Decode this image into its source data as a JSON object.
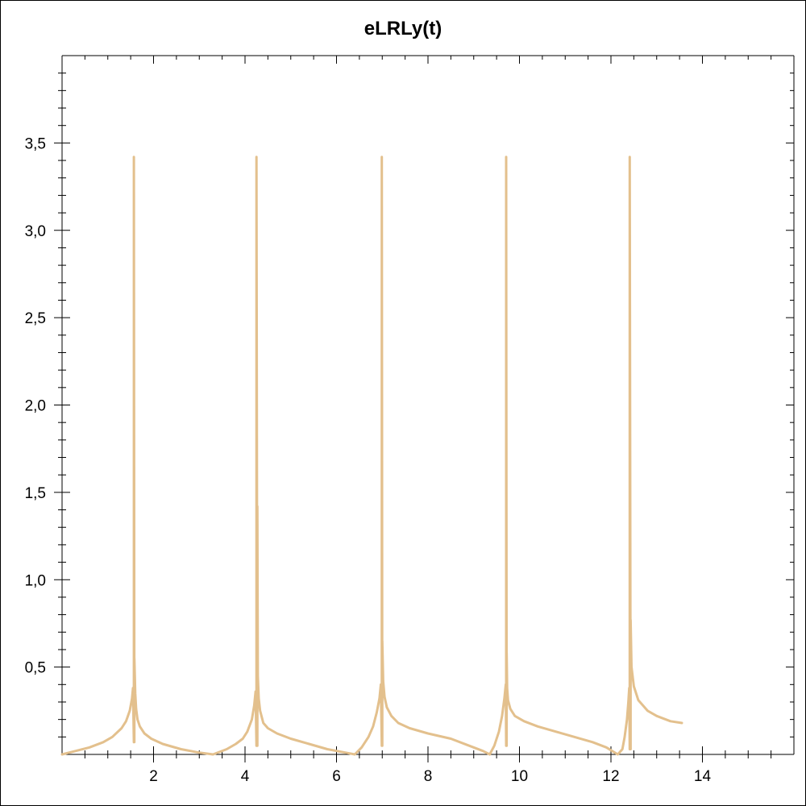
{
  "chart_data": {
    "type": "line",
    "title": "eLRLy(t)",
    "xlabel": "",
    "ylabel": "",
    "xlim": [
      0,
      16
    ],
    "ylim": [
      0,
      4
    ],
    "x_ticks": [
      2,
      4,
      6,
      8,
      10,
      12,
      14
    ],
    "x_tick_labels": [
      "2",
      "4",
      "6",
      "8",
      "10",
      "12",
      "14"
    ],
    "y_ticks": [
      0.5,
      1.0,
      1.5,
      2.0,
      2.5,
      3.0,
      3.5
    ],
    "y_tick_labels": [
      "0,5",
      "1,0",
      "1,5",
      "2,0",
      "2,5",
      "3,0",
      "3,5"
    ],
    "grid": false,
    "series": [
      {
        "color": "#e3c08d",
        "x": [
          0.0,
          0.3,
          0.6,
          0.9,
          1.1,
          1.3,
          1.4,
          1.48,
          1.53,
          1.55,
          1.57,
          1.57,
          1.58,
          1.58,
          1.6,
          1.62,
          1.65,
          1.7,
          1.8,
          1.95,
          2.2,
          2.6,
          3.0,
          3.3,
          3.6,
          3.8,
          3.95,
          4.05,
          4.15,
          4.2,
          4.23,
          4.25,
          4.25,
          4.27,
          4.27,
          4.28,
          4.3,
          4.33,
          4.4,
          4.5,
          4.7,
          5.0,
          5.4,
          5.8,
          6.2,
          6.4,
          6.55,
          6.7,
          6.8,
          6.88,
          6.94,
          6.97,
          6.99,
          6.99,
          7.0,
          7.0,
          7.02,
          7.05,
          7.1,
          7.2,
          7.35,
          7.6,
          8.0,
          8.5,
          8.9,
          9.2,
          9.35,
          9.45,
          9.55,
          9.62,
          9.67,
          9.7,
          9.71,
          9.71,
          9.72,
          9.72,
          9.73,
          9.75,
          9.8,
          9.9,
          10.1,
          10.4,
          10.8,
          11.2,
          11.6,
          11.9,
          12.15,
          12.25,
          12.3,
          12.35,
          12.38,
          12.4,
          12.41,
          12.41,
          12.43,
          12.43,
          12.45,
          12.5,
          12.6,
          12.8,
          13.0,
          13.3,
          13.55
        ],
        "y": [
          0.0,
          0.02,
          0.04,
          0.07,
          0.1,
          0.15,
          0.19,
          0.25,
          0.32,
          0.38,
          0.07,
          3.42,
          0.07,
          0.55,
          0.35,
          0.26,
          0.2,
          0.16,
          0.12,
          0.09,
          0.06,
          0.03,
          0.01,
          0.0,
          0.03,
          0.06,
          0.09,
          0.13,
          0.2,
          0.28,
          0.36,
          0.05,
          3.42,
          0.05,
          1.42,
          0.45,
          0.32,
          0.25,
          0.18,
          0.15,
          0.12,
          0.09,
          0.06,
          0.03,
          0.01,
          0.0,
          0.04,
          0.1,
          0.16,
          0.24,
          0.32,
          0.4,
          0.05,
          3.42,
          0.05,
          0.65,
          0.42,
          0.33,
          0.27,
          0.22,
          0.18,
          0.15,
          0.12,
          0.09,
          0.05,
          0.02,
          0.0,
          0.05,
          0.13,
          0.22,
          0.32,
          0.4,
          0.05,
          3.42,
          0.05,
          0.58,
          0.38,
          0.31,
          0.26,
          0.22,
          0.19,
          0.16,
          0.13,
          0.1,
          0.07,
          0.04,
          0.0,
          0.03,
          0.1,
          0.2,
          0.3,
          0.38,
          0.03,
          3.42,
          0.03,
          0.77,
          0.5,
          0.39,
          0.31,
          0.25,
          0.22,
          0.19,
          0.18
        ]
      }
    ]
  }
}
